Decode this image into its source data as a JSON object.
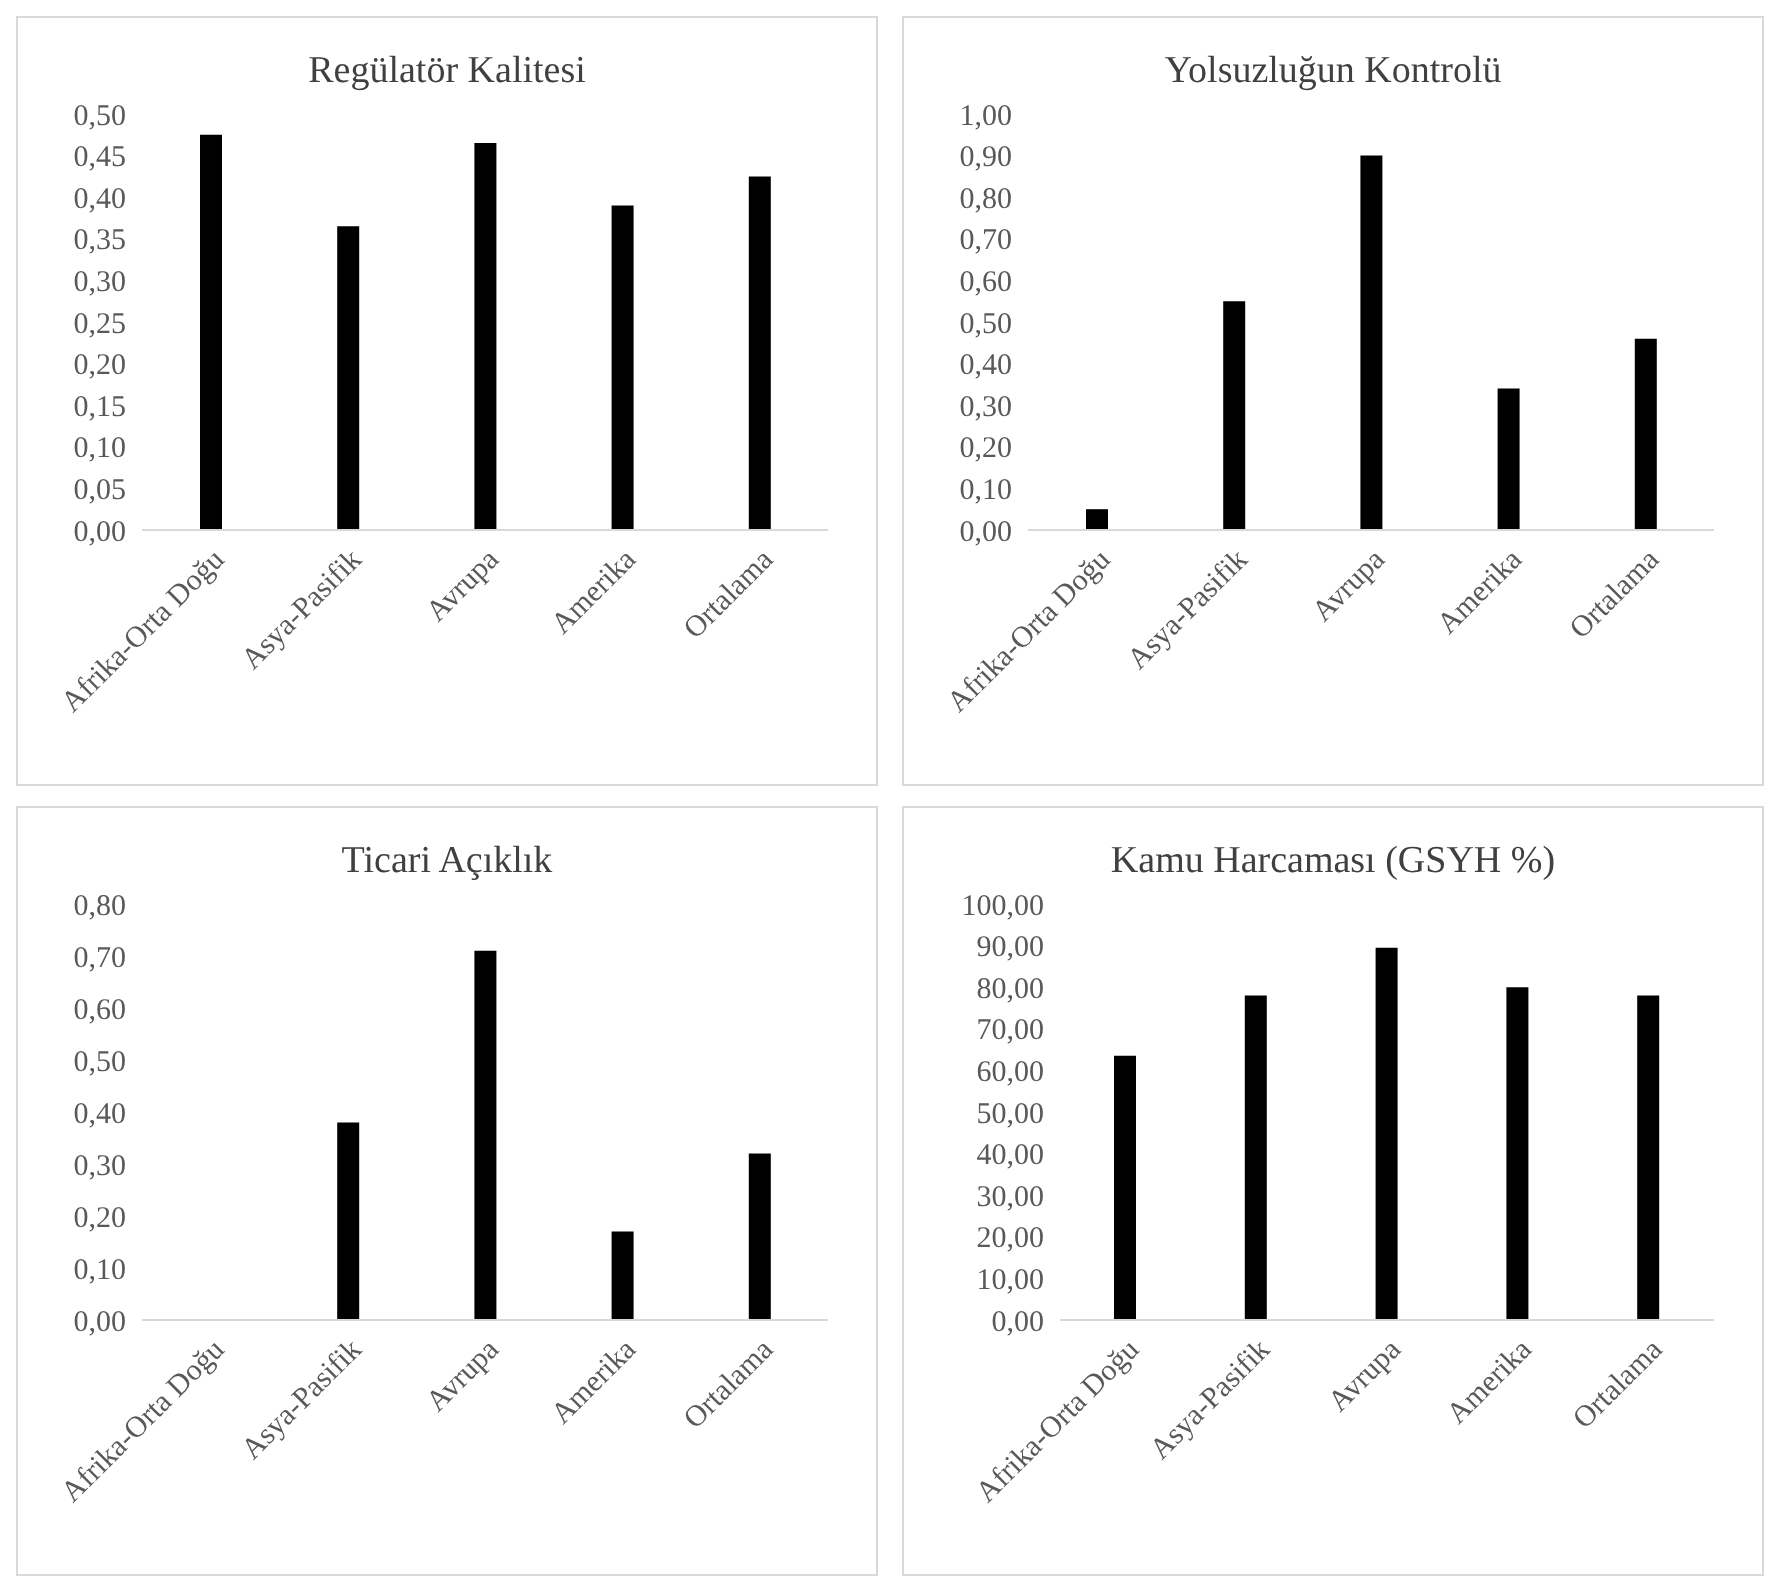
{
  "chart_data": [
    {
      "type": "bar",
      "title": "Regülatör Kalitesi",
      "categories": [
        "Afrika-Orta Doğu",
        "Asya-Pasifik",
        "Avrupa",
        "Amerika",
        "Ortalama"
      ],
      "values": [
        0.475,
        0.365,
        0.465,
        0.39,
        0.425
      ],
      "color": "#000000",
      "ylim": [
        0,
        0.5
      ],
      "yticks": [
        {
          "value": 0,
          "label": "0,00"
        },
        {
          "value": 0.05,
          "label": "0,05"
        },
        {
          "value": 0.1,
          "label": "0,10"
        },
        {
          "value": 0.15,
          "label": "0,15"
        },
        {
          "value": 0.2,
          "label": "0,20"
        },
        {
          "value": 0.25,
          "label": "0,25"
        },
        {
          "value": 0.3,
          "label": "0,30"
        },
        {
          "value": 0.35,
          "label": "0,35"
        },
        {
          "value": 0.4,
          "label": "0,40"
        },
        {
          "value": 0.45,
          "label": "0,45"
        },
        {
          "value": 0.5,
          "label": "0,50"
        }
      ],
      "grid": false,
      "legend": false
    },
    {
      "type": "bar",
      "title": "Yolsuzluğun Kontrolü",
      "categories": [
        "Afrika-Orta Doğu",
        "Asya-Pasifik",
        "Avrupa",
        "Amerika",
        "Ortalama"
      ],
      "values": [
        0.05,
        0.55,
        0.9,
        0.34,
        0.46
      ],
      "color": "#000000",
      "ylim": [
        0,
        1
      ],
      "yticks": [
        {
          "value": 0,
          "label": "0,00"
        },
        {
          "value": 0.1,
          "label": "0,10"
        },
        {
          "value": 0.2,
          "label": "0,20"
        },
        {
          "value": 0.3,
          "label": "0,30"
        },
        {
          "value": 0.4,
          "label": "0,40"
        },
        {
          "value": 0.5,
          "label": "0,50"
        },
        {
          "value": 0.6,
          "label": "0,60"
        },
        {
          "value": 0.7,
          "label": "0,70"
        },
        {
          "value": 0.8,
          "label": "0,80"
        },
        {
          "value": 0.9,
          "label": "0,90"
        },
        {
          "value": 1,
          "label": "1,00"
        }
      ],
      "grid": false,
      "legend": false
    },
    {
      "type": "bar",
      "title": "Ticari Açıklık",
      "categories": [
        "Afrika-Orta Doğu",
        "Asya-Pasifik",
        "Avrupa",
        "Amerika",
        "Ortalama"
      ],
      "values": [
        0,
        0.38,
        0.71,
        0.17,
        0.32
      ],
      "color": "#000000",
      "ylim": [
        0,
        0.8
      ],
      "yticks": [
        {
          "value": 0,
          "label": "0,00"
        },
        {
          "value": 0.1,
          "label": "0,10"
        },
        {
          "value": 0.2,
          "label": "0,20"
        },
        {
          "value": 0.3,
          "label": "0,30"
        },
        {
          "value": 0.4,
          "label": "0,40"
        },
        {
          "value": 0.5,
          "label": "0,50"
        },
        {
          "value": 0.6,
          "label": "0,60"
        },
        {
          "value": 0.7,
          "label": "0,70"
        },
        {
          "value": 0.8,
          "label": "0,80"
        }
      ],
      "grid": false,
      "legend": false
    },
    {
      "type": "bar",
      "title": "Kamu Harcaması (GSYH %)",
      "categories": [
        "Afrika-Orta Doğu",
        "Asya-Pasifik",
        "Avrupa",
        "Amerika",
        "Ortalama"
      ],
      "values": [
        63.5,
        78,
        89.5,
        80,
        78
      ],
      "color": "#000000",
      "ylim": [
        0,
        100
      ],
      "yticks": [
        {
          "value": 0,
          "label": "0,00"
        },
        {
          "value": 10,
          "label": "10,00"
        },
        {
          "value": 20,
          "label": "20,00"
        },
        {
          "value": 30,
          "label": "30,00"
        },
        {
          "value": 40,
          "label": "40,00"
        },
        {
          "value": 50,
          "label": "50,00"
        },
        {
          "value": 60,
          "label": "60,00"
        },
        {
          "value": 70,
          "label": "70,00"
        },
        {
          "value": 80,
          "label": "80,00"
        },
        {
          "value": 90,
          "label": "90,00"
        },
        {
          "value": 100,
          "label": "100,00"
        }
      ],
      "grid": false,
      "legend": false
    }
  ]
}
